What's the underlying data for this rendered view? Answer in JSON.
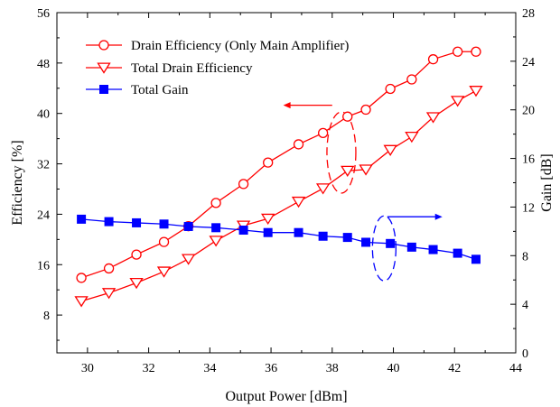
{
  "chart_data": {
    "type": "line",
    "xlabel": "Output Power [dBm]",
    "ylabel_left": "Efficiency [%]",
    "ylabel_right": "Gain [dB]",
    "xlim": [
      29,
      44
    ],
    "ylim_left": [
      2,
      56
    ],
    "ylim_right": [
      0,
      28
    ],
    "xticks": [
      30,
      32,
      34,
      36,
      38,
      40,
      42,
      44
    ],
    "yticks_left": [
      8,
      16,
      24,
      32,
      40,
      48,
      56
    ],
    "yticks_right": [
      0,
      4,
      8,
      12,
      16,
      20,
      24,
      28
    ],
    "legend_position": "top-left",
    "colors": {
      "red": "#ff0000",
      "blue": "#0000ff"
    },
    "series": [
      {
        "name": "Drain Efficiency (Only Main Amplifier)",
        "axis": "left",
        "marker": "circle-open",
        "color": "#ff0000",
        "x": [
          29.8,
          30.7,
          31.6,
          32.5,
          33.3,
          34.2,
          35.1,
          35.9,
          36.9,
          37.7,
          38.5,
          39.1,
          39.9,
          40.6,
          41.3,
          42.1,
          42.7
        ],
        "y": [
          13.9,
          15.4,
          17.6,
          19.6,
          22.1,
          25.8,
          28.8,
          32.2,
          35.1,
          36.9,
          39.5,
          40.6,
          43.9,
          45.4,
          48.6,
          49.8,
          49.8
        ]
      },
      {
        "name": "Total Drain Efficiency",
        "axis": "left",
        "marker": "triangle-down-open",
        "color": "#ff0000",
        "x": [
          29.8,
          30.7,
          31.6,
          32.5,
          33.3,
          34.2,
          35.1,
          35.9,
          36.9,
          37.7,
          38.5,
          39.1,
          39.9,
          40.6,
          41.3,
          42.1,
          42.7
        ],
        "y": [
          10.2,
          11.5,
          13.1,
          14.9,
          16.9,
          19.8,
          22.2,
          23.3,
          26.0,
          28.1,
          30.9,
          31.1,
          34.2,
          36.3,
          39.4,
          42.0,
          43.6
        ]
      },
      {
        "name": "Total Gain",
        "axis": "right",
        "marker": "square-filled",
        "color": "#0000ff",
        "x": [
          29.8,
          30.7,
          31.6,
          32.5,
          33.3,
          34.2,
          35.1,
          35.9,
          36.9,
          37.7,
          38.5,
          39.1,
          39.9,
          40.6,
          41.3,
          42.1,
          42.7
        ],
        "y": [
          11.0,
          10.8,
          10.7,
          10.6,
          10.4,
          10.3,
          10.1,
          9.9,
          9.9,
          9.6,
          9.5,
          9.1,
          9.0,
          8.7,
          8.5,
          8.2,
          7.7
        ]
      }
    ],
    "annotations": [
      {
        "type": "ellipse",
        "color": "#ff0000",
        "style": "dashed",
        "points_to": "left-axis",
        "arrow": "left"
      },
      {
        "type": "ellipse",
        "color": "#0000ff",
        "style": "dashed",
        "points_to": "right-axis",
        "arrow": "right"
      }
    ]
  }
}
